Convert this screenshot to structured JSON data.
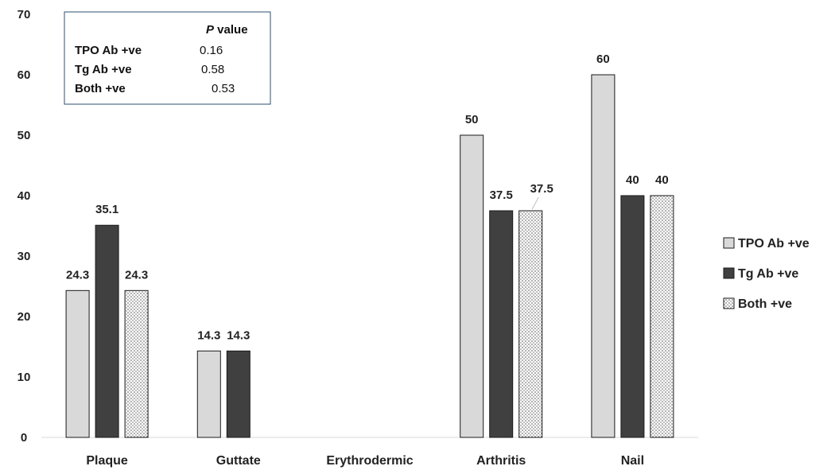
{
  "chart_data": {
    "type": "bar",
    "categories": [
      "Plaque",
      "Guttate",
      "Erythrodermic",
      "Arthritis",
      "Nail"
    ],
    "series": [
      {
        "name": "TPO Ab +ve",
        "values": [
          24.3,
          14.3,
          null,
          50,
          60
        ],
        "labels": [
          "24.3",
          "14.3",
          "",
          "50",
          "60"
        ],
        "color": "#d9d9d9",
        "pattern": "solid"
      },
      {
        "name": "Tg Ab +ve",
        "values": [
          35.1,
          14.3,
          null,
          37.5,
          40
        ],
        "labels": [
          "35.1",
          "14.3",
          "",
          "37.5",
          "40"
        ],
        "color": "#404040",
        "pattern": "solid"
      },
      {
        "name": "Both +ve",
        "values": [
          24.3,
          null,
          null,
          37.5,
          40
        ],
        "labels": [
          "24.3",
          "",
          "",
          "37.5",
          "40"
        ],
        "color": "#ffffff",
        "pattern": "dots"
      }
    ],
    "ylim": [
      0,
      70
    ],
    "yticks": [
      0,
      10,
      20,
      30,
      40,
      50,
      60,
      70
    ],
    "title": "",
    "xlabel": "",
    "ylabel": "",
    "grid": false,
    "legend_position": "right",
    "inset_table": {
      "header": [
        "",
        "P value"
      ],
      "header_italic_part": "P",
      "header_rest": " value",
      "rows": [
        {
          "label": "TPO Ab +ve",
          "value": "0.16"
        },
        {
          "label": "Tg Ab +ve",
          "value": "0.58"
        },
        {
          "label": "Both +ve",
          "value": "0.53"
        }
      ]
    }
  }
}
